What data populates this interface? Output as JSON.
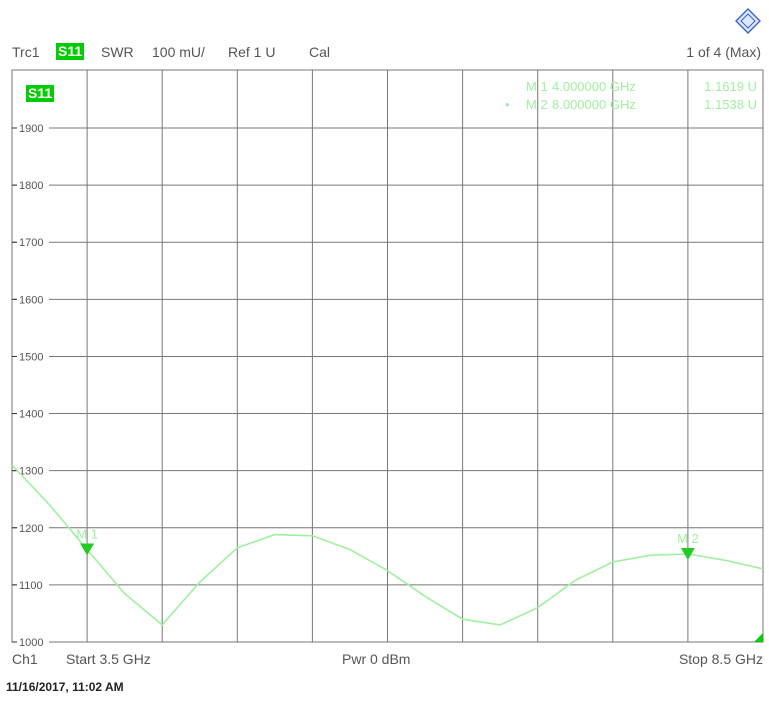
{
  "header": {
    "trace": "Trc1",
    "sparam": "S11",
    "format": "SWR",
    "scale": "100 mU/",
    "ref": "Ref 1 U",
    "cal": "Cal",
    "page": "1 of 4 (Max)"
  },
  "trace_badge": "S11",
  "markers": [
    {
      "label": "M 1",
      "freq": "4.000000 GHz",
      "value": "1.1619 U",
      "active": false
    },
    {
      "label": "M 2",
      "freq": "8.000000 GHz",
      "value": "1.1538 U",
      "active": true
    }
  ],
  "marker_tags": [
    "M 1",
    "M 2"
  ],
  "footer": {
    "channel": "Ch1",
    "start": "Start  3.5 GHz",
    "power": "Pwr  0 dBm",
    "stop": "Stop  8.5 GHz"
  },
  "timestamp": "11/16/2017, 11:02 AM",
  "colors": {
    "trace": "#9ff09f",
    "badge": "#00cc00",
    "marker": "#22cc22",
    "grid": "#777777"
  },
  "chart_data": {
    "type": "line",
    "title": "",
    "xlabel": "",
    "ylabel": "",
    "x_unit": "GHz",
    "xlim": [
      3.5,
      8.5
    ],
    "ylim": [
      1000,
      1900
    ],
    "yticks": [
      1000,
      1100,
      1200,
      1300,
      1400,
      1500,
      1600,
      1700,
      1800,
      1900
    ],
    "grid": true,
    "series": [
      {
        "x": [
          3.5,
          3.75,
          4.0,
          4.25,
          4.5,
          4.75,
          5.0,
          5.25,
          5.5,
          5.75,
          6.0,
          6.25,
          6.5,
          6.75,
          7.0,
          7.25,
          7.5,
          7.75,
          8.0,
          8.25,
          8.5
        ],
        "values": [
          1310,
          1240,
          1162,
          1085,
          1030,
          1105,
          1165,
          1188,
          1186,
          1162,
          1125,
          1080,
          1040,
          1030,
          1060,
          1108,
          1140,
          1152,
          1154,
          1143,
          1128
        ]
      }
    ],
    "markers": [
      {
        "x": 4.0,
        "y": 1162
      },
      {
        "x": 8.0,
        "y": 1154
      }
    ]
  }
}
